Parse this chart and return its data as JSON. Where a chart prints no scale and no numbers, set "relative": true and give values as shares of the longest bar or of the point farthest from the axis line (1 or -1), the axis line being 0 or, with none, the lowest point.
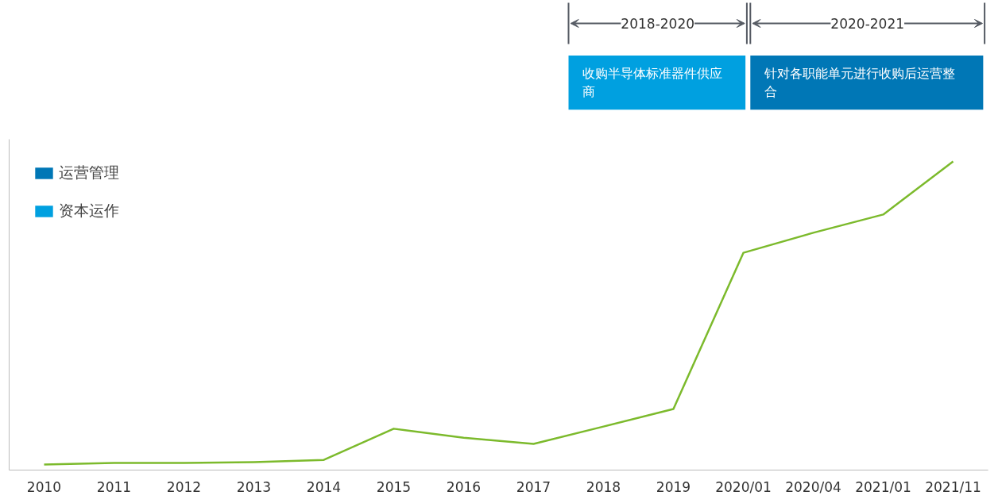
{
  "chart_data": {
    "type": "line",
    "relative": true,
    "categories": [
      "2010",
      "2011",
      "2012",
      "2013",
      "2014",
      "2015",
      "2016",
      "2017",
      "2018",
      "2019",
      "2020/01",
      "2020/04",
      "2021/01",
      "2021/11"
    ],
    "series": [
      {
        "color": "#7cba2c",
        "values": [
          0.018,
          0.023,
          0.023,
          0.026,
          0.033,
          0.134,
          0.105,
          0.085,
          0.141,
          0.198,
          0.704,
          0.769,
          0.828,
          1.0
        ]
      },
      {
        "type": "bar",
        "name": "运营管理",
        "color": "#0077b6",
        "values": [
          null,
          null,
          null,
          null,
          null,
          null,
          null,
          null,
          null,
          null,
          null,
          null,
          null,
          null
        ]
      },
      {
        "type": "bar",
        "name": "资本运作",
        "color": "#00a0e0",
        "values": [
          null,
          null,
          null,
          null,
          null,
          null,
          null,
          null,
          null,
          null,
          null,
          null,
          null,
          null
        ]
      }
    ],
    "annotations": [
      "2018-2020",
      "收购半导体标准器件供应商",
      "2020-2021",
      "针对各职能单元进行收购后运营整合"
    ],
    "legend": "top left",
    "grid": false
  }
}
